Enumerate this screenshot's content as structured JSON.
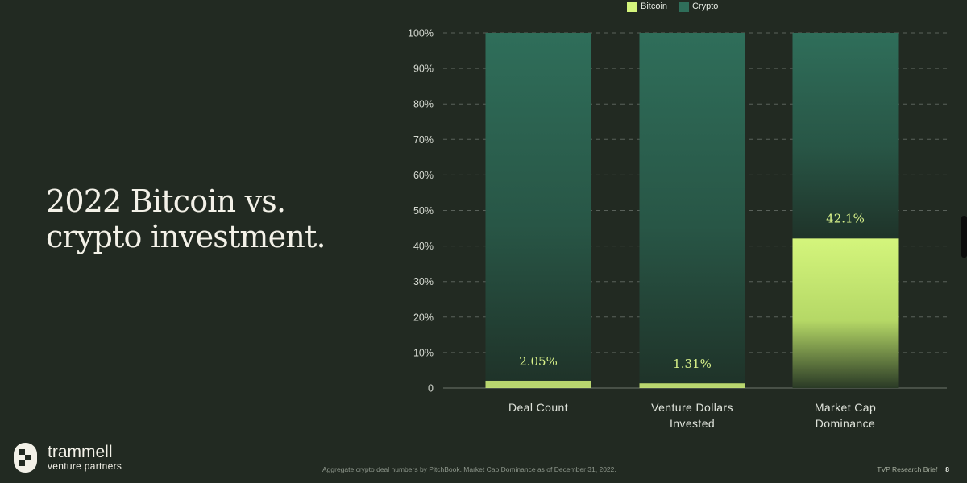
{
  "headline": {
    "line1": "2022 Bitcoin vs.",
    "line2": "crypto investment."
  },
  "brand": {
    "name": "trammell",
    "subtitle": "venture partners",
    "logo_icon": "trammell-logo-icon"
  },
  "footer": {
    "note": "Aggregate crypto deal numbers by PitchBook. Market Cap Dominance as of December 31, 2022.",
    "brief": "TVP Research Brief",
    "page": "8"
  },
  "colors": {
    "background": "#222a22",
    "bitcoin": "#d4f57c",
    "crypto": "#2f6e5a",
    "grid": "#59615a",
    "data_label": "#d9f28a"
  },
  "chart_data": {
    "type": "bar",
    "stacked": true,
    "normalized": true,
    "categories": [
      [
        "Deal Count"
      ],
      [
        "Venture Dollars",
        "Invested"
      ],
      [
        "Market Cap",
        "Dominance"
      ]
    ],
    "series": [
      {
        "name": "Bitcoin",
        "values": [
          2.05,
          1.31,
          42.1
        ]
      },
      {
        "name": "Crypto",
        "values": [
          97.95,
          98.69,
          57.9
        ]
      }
    ],
    "data_labels": [
      "2.05%",
      "1.31%",
      "42.1%"
    ],
    "ylim": [
      0,
      100
    ],
    "yticks": [
      0,
      10,
      20,
      30,
      40,
      50,
      60,
      70,
      80,
      90,
      100
    ],
    "ytick_labels": [
      "0",
      "10%",
      "20%",
      "30%",
      "40%",
      "50%",
      "60%",
      "70%",
      "80%",
      "90%",
      "100%"
    ],
    "grid": "horizontal-dashed",
    "legend_position": "top",
    "legend": [
      "Bitcoin",
      "Crypto"
    ]
  }
}
